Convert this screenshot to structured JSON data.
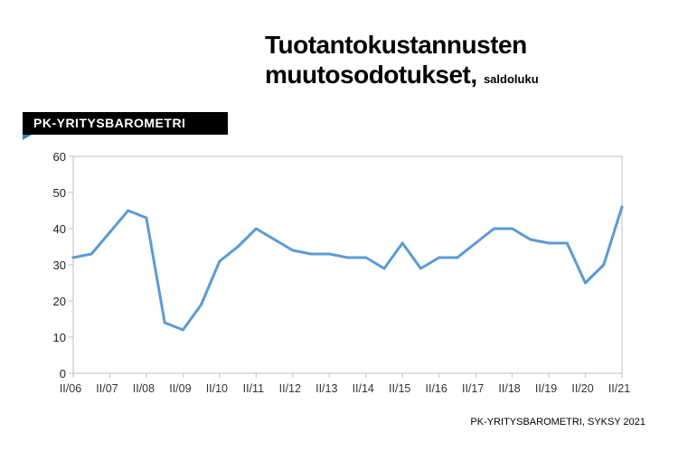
{
  "header": {
    "title_line1": "Tuotantokustannusten",
    "title_line2": "muutosodotukset,",
    "unit": "saldoluku"
  },
  "badge": {
    "label": "PK-YRITYSBAROMETRI"
  },
  "source": "PK-YRITYSBAROMETRI, SYKSY 2021",
  "colors": {
    "line": "#5b9bd5",
    "axis": "#bfbfbf",
    "badge_bg": "#000000",
    "badge_accent": "#2e86c1"
  },
  "chart_data": {
    "type": "line",
    "title": "",
    "xlabel": "",
    "ylabel": "",
    "ylim": [
      0,
      60
    ],
    "yticks": [
      0,
      10,
      20,
      30,
      40,
      50,
      60
    ],
    "grid": false,
    "legend": "none",
    "x_tick_labels": [
      "II/06",
      "II/07",
      "II/08",
      "II/09",
      "II/10",
      "II/11",
      "II/12",
      "II/13",
      "II/14",
      "II/15",
      "II/16",
      "II/17",
      "II/18",
      "II/19",
      "II/20",
      "II/21"
    ],
    "series": [
      {
        "values": [
          32,
          33,
          39,
          45,
          43,
          14,
          12,
          19,
          31,
          35,
          40,
          37,
          34,
          33,
          33,
          32,
          32,
          29,
          36,
          29,
          32,
          32,
          36,
          40,
          40,
          37,
          36,
          36,
          25,
          30,
          46
        ]
      }
    ]
  }
}
